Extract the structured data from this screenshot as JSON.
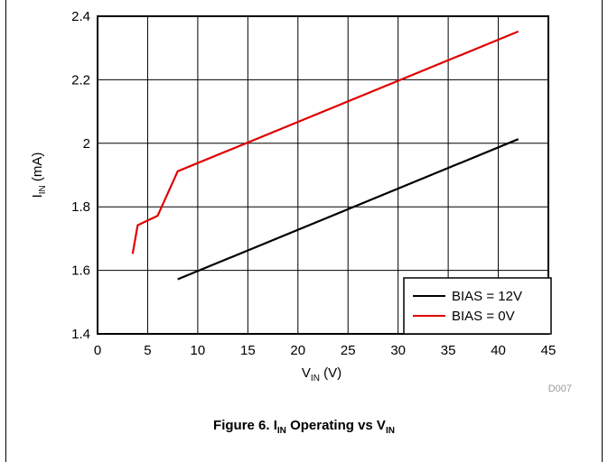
{
  "figure": {
    "caption_prefix": "Figure 6. I",
    "caption_sub1": "IN",
    "caption_mid": " Operating vs V",
    "caption_sub2": "IN",
    "code": "D007"
  },
  "chart_data": {
    "type": "line",
    "xlabel_main": "V",
    "xlabel_sub": "IN",
    "xlabel_unit": " (V)",
    "ylabel_main": "I",
    "ylabel_sub": "IN",
    "ylabel_unit": " (mA)",
    "xlim": [
      0,
      45
    ],
    "ylim": [
      1.4,
      2.4
    ],
    "xticks": [
      0,
      5,
      10,
      15,
      20,
      25,
      30,
      35,
      40,
      45
    ],
    "yticks": [
      1.4,
      1.6,
      1.8,
      2.0,
      2.2,
      2.4
    ],
    "xtick_labels": [
      "0",
      "5",
      "10",
      "15",
      "20",
      "25",
      "30",
      "35",
      "40",
      "45"
    ],
    "ytick_labels": [
      "1.4",
      "1.6",
      "1.8",
      "2",
      "2.2",
      "2.4"
    ],
    "grid": true,
    "legend_position": "bottom-right",
    "series": [
      {
        "name": "BIAS = 12V",
        "color": "#000000",
        "x": [
          8,
          42
        ],
        "y": [
          1.572,
          2.013
        ]
      },
      {
        "name": "BIAS = 0V",
        "color": "#e00000",
        "x": [
          3.5,
          4,
          6,
          8,
          42
        ],
        "y": [
          1.652,
          1.742,
          1.772,
          1.912,
          2.352
        ]
      }
    ]
  }
}
